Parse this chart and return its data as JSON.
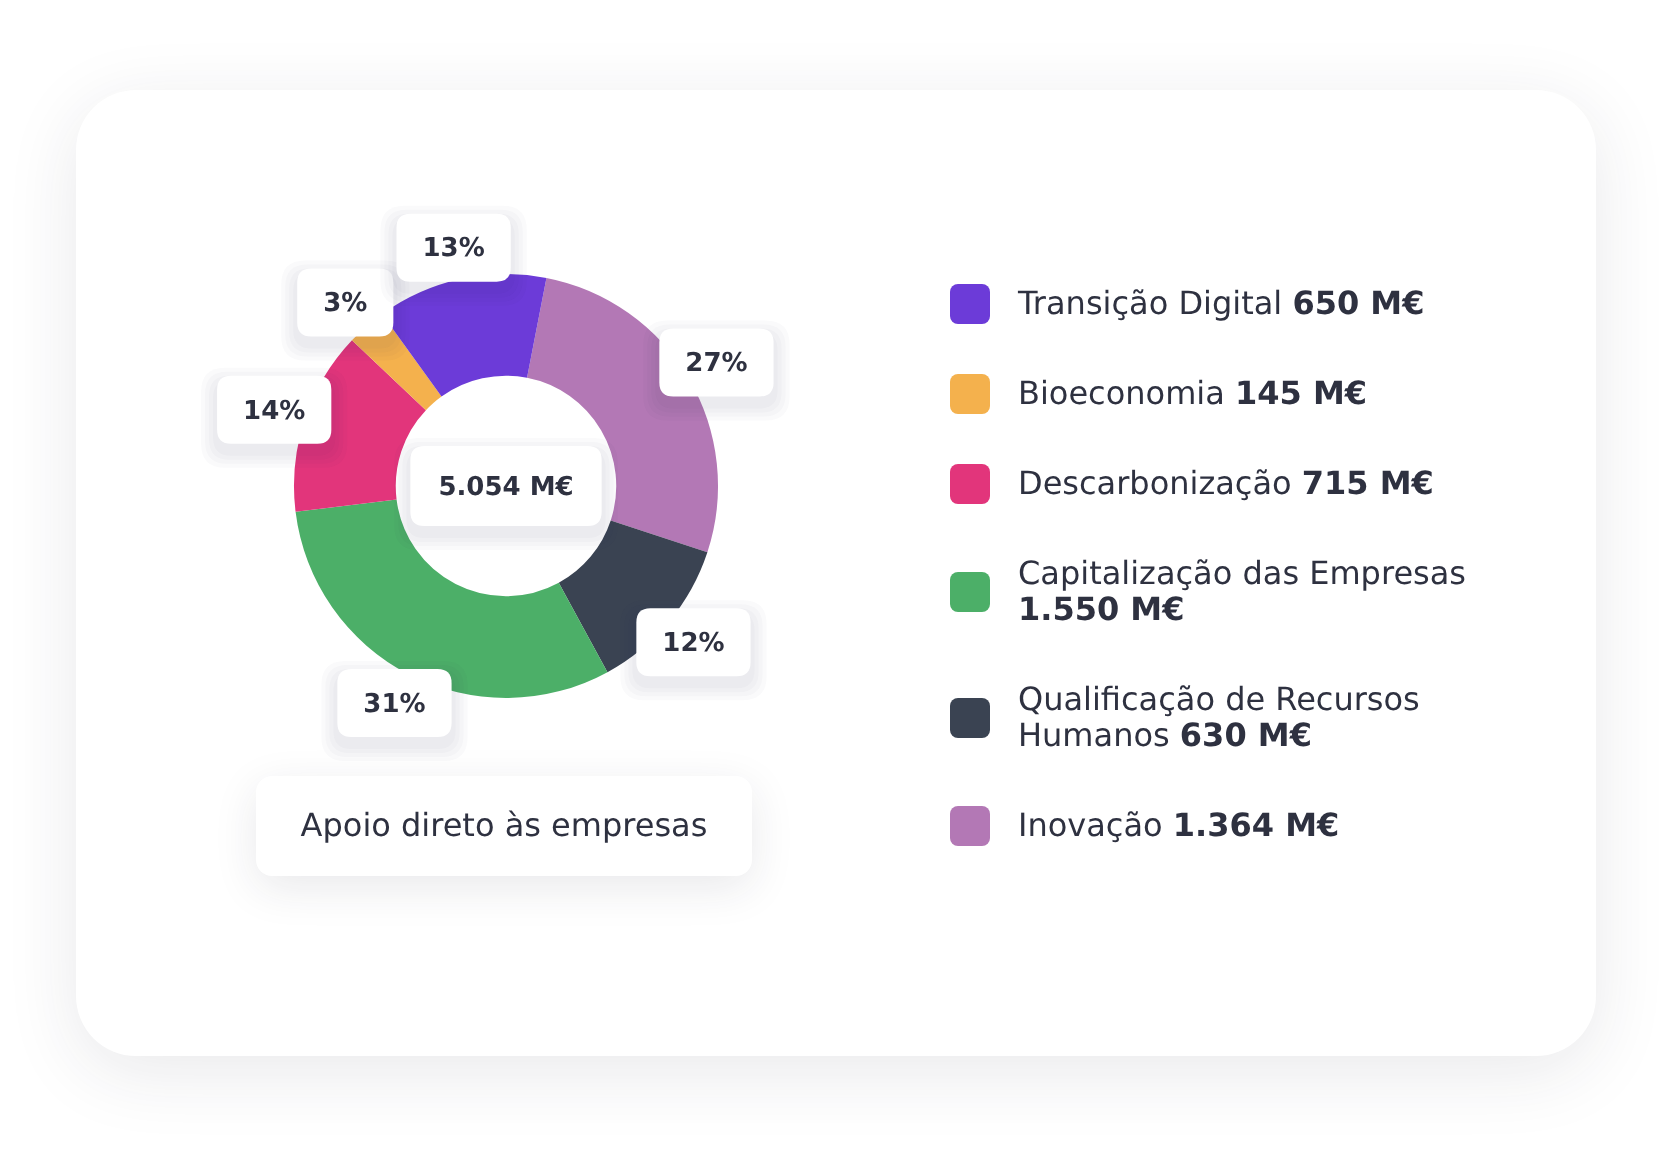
{
  "chart_data": {
    "type": "donut",
    "title": "Apoio direto às empresas",
    "categories": [
      "Transição Digital 650 M€",
      "Bioeconomia 145 M€",
      "Descarbonização 715 M€",
      "Capitalização das Empresas 1.550 M€",
      "Qualificação de Recursos Humanos 630 M€",
      "Inovação 1.364 M€"
    ],
    "values": [
      13,
      3,
      14,
      31,
      12,
      27
    ],
    "colors": [
      "#6c3bd8",
      "#f4b14d",
      "#e2357b",
      "#4caf68",
      "#3a4352",
      "#b378b5"
    ],
    "value_labels": [
      "13%",
      "3%",
      "14%",
      "31%",
      "12%",
      "27%"
    ],
    "annotations": [
      "5.054 M€"
    ],
    "legend": "right"
  }
}
